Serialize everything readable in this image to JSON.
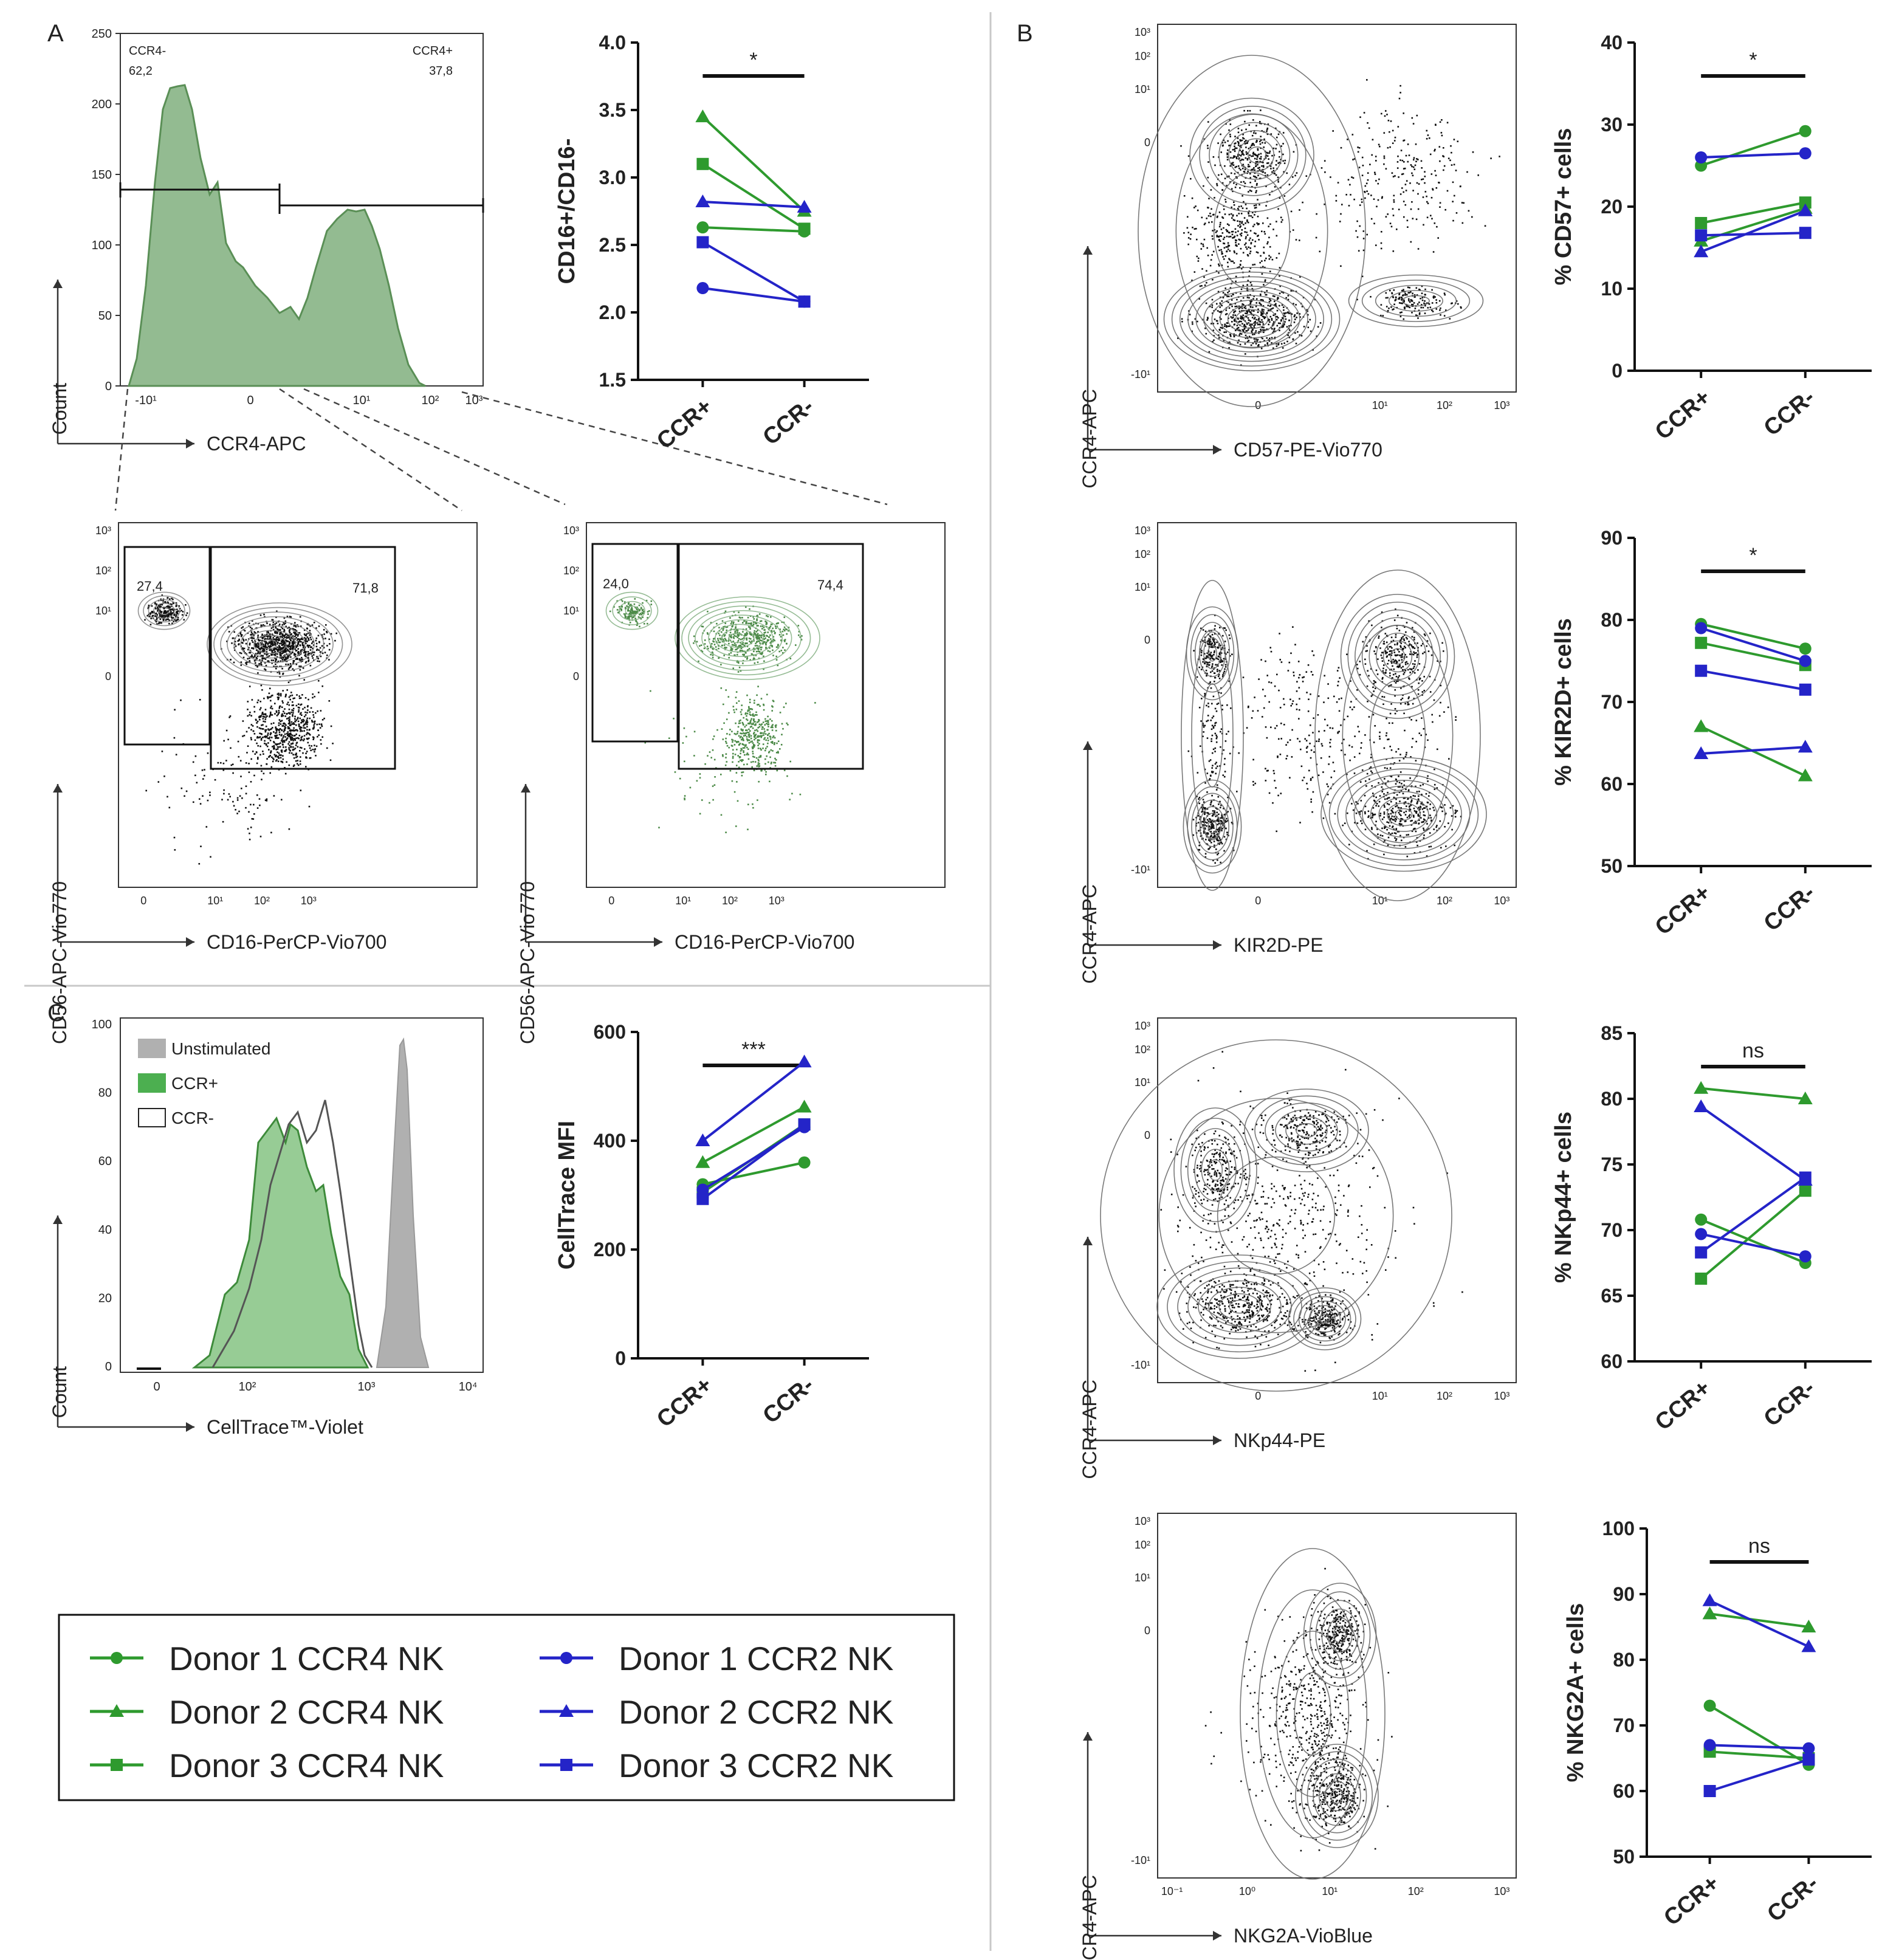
{
  "panels": {
    "a": "A",
    "b": "B",
    "c": "C"
  },
  "histA": {
    "ylabel": "Count",
    "xlabel": "CCR4-APC",
    "yticks": [
      "0",
      "50",
      "100",
      "150",
      "200",
      "250"
    ],
    "xticks": [
      "-10¹",
      "0",
      "10¹",
      "10²",
      "10³"
    ],
    "gate_left": "CCR4-",
    "val_left": "62,2",
    "gate_right": "CCR4+",
    "val_right": "37,8",
    "color": "#5a8f56",
    "fill": "#6fa46c"
  },
  "contourA1": {
    "ylabel": "CD56-APC-Vio770",
    "xlabel": "CD16-PerCP-Vio700",
    "yticks": [
      "10³",
      "10²",
      "10¹",
      "0"
    ],
    "xticks": [
      "0",
      "10¹",
      "10²",
      "10³"
    ],
    "g1": "27,4",
    "g2": "71,8",
    "dot_color": "#111111"
  },
  "contourA2": {
    "ylabel": "CD56-APC-Vio770",
    "xlabel": "CD16-PerCP-Vio700",
    "yticks": [
      "10³",
      "10²",
      "10¹",
      "0"
    ],
    "xticks": [
      "0",
      "10¹",
      "10²",
      "10³"
    ],
    "g1": "24,0",
    "g2": "74,4",
    "dot_color": "#4c8a48"
  },
  "histC": {
    "ylabel": "Count",
    "xlabel": "CellTrace™-Violet",
    "yticks": [
      "0",
      "20",
      "40",
      "60",
      "80",
      "100"
    ],
    "xticks": [
      "0",
      "10²",
      "10³",
      "10⁴"
    ],
    "legend": [
      {
        "label": "Unstimulated",
        "color": "#b0b0b0"
      },
      {
        "label": "CCR+",
        "color": "#4caf50"
      },
      {
        "label": "CCR-",
        "color": "#ffffff"
      }
    ]
  },
  "contoursB": [
    {
      "ylabel": "CCR4-APC",
      "xlabel": "CD57-PE-Vio770",
      "yticks": [
        "10³",
        "10²",
        "10¹",
        "0",
        "-10¹"
      ],
      "xticks": [
        "0",
        "10¹",
        "10²",
        "10³"
      ]
    },
    {
      "ylabel": "CCR4-APC",
      "xlabel": "KIR2D-PE",
      "yticks": [
        "10³",
        "10²",
        "10¹",
        "0",
        "-10¹"
      ],
      "xticks": [
        "0",
        "10¹",
        "10²",
        "10³"
      ]
    },
    {
      "ylabel": "CCR4-APC",
      "xlabel": "NKp44-PE",
      "yticks": [
        "10³",
        "10²",
        "10¹",
        "0",
        "-10¹"
      ],
      "xticks": [
        "0",
        "10¹",
        "10²",
        "10³"
      ]
    },
    {
      "ylabel": "CCR4-APC",
      "xlabel": "NKG2A-VioBlue",
      "yticks": [
        "10³",
        "10²",
        "10¹",
        "0",
        "-10¹"
      ],
      "xticks": [
        "10⁻¹",
        "10⁰",
        "10¹",
        "10²",
        "10³"
      ]
    }
  ],
  "legend": {
    "items": [
      {
        "label": "Donor 1 CCR4 NK",
        "color": "#2e9a2e",
        "marker": "circle"
      },
      {
        "label": "Donor 2 CCR4 NK",
        "color": "#2e9a2e",
        "marker": "triangle"
      },
      {
        "label": "Donor 3 CCR4 NK",
        "color": "#2e9a2e",
        "marker": "square"
      },
      {
        "label": "Donor 1 CCR2 NK",
        "color": "#2424c8",
        "marker": "circle"
      },
      {
        "label": "Donor 2 CCR2 NK",
        "color": "#2424c8",
        "marker": "triangle"
      },
      {
        "label": "Donor 3 CCR2 NK",
        "color": "#2424c8",
        "marker": "square"
      }
    ]
  },
  "chart_data": [
    {
      "id": "a",
      "type": "line",
      "ylabel": "CD16+/CD16-",
      "categories": [
        "CCR+",
        "CCR-"
      ],
      "ylim": [
        1.5,
        4.0
      ],
      "yticks": [
        "1.5",
        "2.0",
        "2.5",
        "3.0",
        "3.5",
        "4.0"
      ],
      "sig": "*",
      "series": [
        {
          "name": "Donor 1 CCR4 NK",
          "values": [
            2.63,
            2.6
          ]
        },
        {
          "name": "Donor 2 CCR4 NK",
          "values": [
            3.45,
            2.75
          ]
        },
        {
          "name": "Donor 3 CCR4 NK",
          "values": [
            3.1,
            2.62
          ]
        },
        {
          "name": "Donor 1 CCR2 NK",
          "values": [
            2.18,
            2.08
          ]
        },
        {
          "name": "Donor 2 CCR2 NK",
          "values": [
            2.82,
            2.78
          ]
        },
        {
          "name": "Donor 3 CCR2 NK",
          "values": [
            2.52,
            2.08
          ]
        }
      ]
    },
    {
      "id": "c",
      "type": "line",
      "ylabel": "CellTrace MFI",
      "categories": [
        "CCR+",
        "CCR-"
      ],
      "ylim": [
        0,
        600
      ],
      "yticks": [
        "0",
        "200",
        "400",
        "600"
      ],
      "sig": "***",
      "series": [
        {
          "name": "Donor 1 CCR4 NK",
          "values": [
            320,
            360
          ]
        },
        {
          "name": "Donor 2 CCR4 NK",
          "values": [
            360,
            462
          ]
        },
        {
          "name": "Donor 3 CCR4 NK",
          "values": [
            305,
            430
          ]
        },
        {
          "name": "Donor 1 CCR2 NK",
          "values": [
            310,
            425
          ]
        },
        {
          "name": "Donor 2 CCR2 NK",
          "values": [
            400,
            545
          ]
        },
        {
          "name": "Donor 3 CCR2 NK",
          "values": [
            293,
            430
          ]
        }
      ]
    },
    {
      "id": "b1",
      "type": "line",
      "ylabel": "% CD57+ cells",
      "categories": [
        "CCR+",
        "CCR-"
      ],
      "ylim": [
        0,
        40
      ],
      "yticks": [
        "0",
        "10",
        "20",
        "30",
        "40"
      ],
      "sig": "*",
      "series": [
        {
          "name": "Donor 1 CCR4 NK",
          "values": [
            25.0,
            29.2
          ]
        },
        {
          "name": "Donor 2 CCR4 NK",
          "values": [
            15.8,
            19.8
          ]
        },
        {
          "name": "Donor 3 CCR4 NK",
          "values": [
            18.0,
            20.5
          ]
        },
        {
          "name": "Donor 1 CCR2 NK",
          "values": [
            26.0,
            26.5
          ]
        },
        {
          "name": "Donor 2 CCR2 NK",
          "values": [
            14.5,
            19.5
          ]
        },
        {
          "name": "Donor 3 CCR2 NK",
          "values": [
            16.5,
            16.8
          ]
        }
      ]
    },
    {
      "id": "b2",
      "type": "line",
      "ylabel": "% KIR2D+ cells",
      "categories": [
        "CCR+",
        "CCR-"
      ],
      "ylim": [
        50,
        90
      ],
      "yticks": [
        "50",
        "60",
        "70",
        "80",
        "90"
      ],
      "sig": "*",
      "series": [
        {
          "name": "Donor 1 CCR4 NK",
          "values": [
            79.5,
            76.5
          ]
        },
        {
          "name": "Donor 2 CCR4 NK",
          "values": [
            67.0,
            61.0
          ]
        },
        {
          "name": "Donor 3 CCR4 NK",
          "values": [
            77.2,
            74.5
          ]
        },
        {
          "name": "Donor 1 CCR2 NK",
          "values": [
            79.0,
            75.0
          ]
        },
        {
          "name": "Donor 2 CCR2 NK",
          "values": [
            63.7,
            64.5
          ]
        },
        {
          "name": "Donor 3 CCR2 NK",
          "values": [
            73.8,
            71.5
          ]
        }
      ]
    },
    {
      "id": "b3",
      "type": "line",
      "ylabel": "% NKp44+ cells",
      "categories": [
        "CCR+",
        "CCR-"
      ],
      "ylim": [
        60,
        85
      ],
      "yticks": [
        "60",
        "65",
        "70",
        "75",
        "80",
        "85"
      ],
      "sig": "ns",
      "series": [
        {
          "name": "Donor 1 CCR4 NK",
          "values": [
            70.8,
            67.5
          ]
        },
        {
          "name": "Donor 2 CCR4 NK",
          "values": [
            80.8,
            80.0
          ]
        },
        {
          "name": "Donor 3 CCR4 NK",
          "values": [
            66.3,
            73.0
          ]
        },
        {
          "name": "Donor 1 CCR2 NK",
          "values": [
            69.7,
            68.0
          ]
        },
        {
          "name": "Donor 2 CCR2 NK",
          "values": [
            79.4,
            73.8
          ]
        },
        {
          "name": "Donor 3 CCR2 NK",
          "values": [
            68.3,
            74.0
          ]
        }
      ]
    },
    {
      "id": "b4",
      "type": "line",
      "ylabel": "% NKG2A+ cells",
      "categories": [
        "CCR+",
        "CCR-"
      ],
      "ylim": [
        50,
        100
      ],
      "yticks": [
        "50",
        "60",
        "70",
        "80",
        "90",
        "100"
      ],
      "sig": "ns",
      "series": [
        {
          "name": "Donor 1 CCR4 NK",
          "values": [
            73.0,
            64.0
          ]
        },
        {
          "name": "Donor 2 CCR4 NK",
          "values": [
            87.0,
            85.0
          ]
        },
        {
          "name": "Donor 3 CCR4 NK",
          "values": [
            66.0,
            65.0
          ]
        },
        {
          "name": "Donor 1 CCR2 NK",
          "values": [
            67.0,
            66.5
          ]
        },
        {
          "name": "Donor 2 CCR2 NK",
          "values": [
            89.0,
            82.0
          ]
        },
        {
          "name": "Donor 3 CCR2 NK",
          "values": [
            60.0,
            64.8
          ]
        }
      ]
    }
  ]
}
